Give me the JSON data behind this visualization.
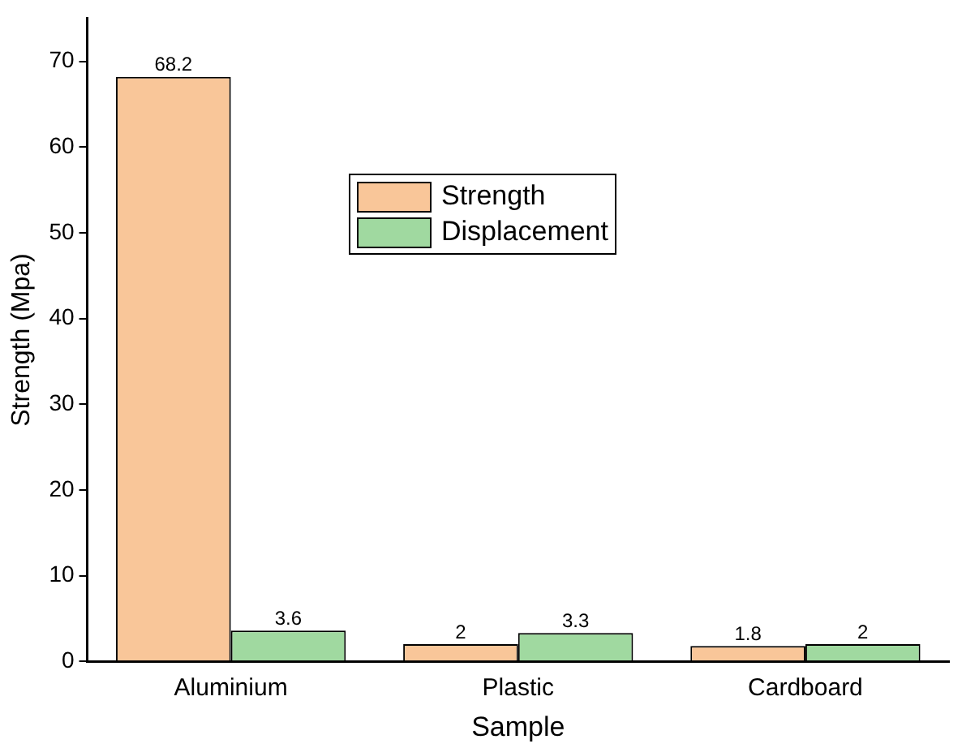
{
  "chart_data": {
    "type": "bar",
    "xlabel": "Sample",
    "ylabel": "Strength (Mpa)",
    "categories": [
      "Aluminium",
      "Plastic",
      "Cardboard"
    ],
    "series": [
      {
        "name": "Strength",
        "color": "#f9c699",
        "values": [
          68.2,
          2,
          1.8
        ]
      },
      {
        "name": "Displacement",
        "color": "#a0d9a0",
        "values": [
          3.6,
          3.3,
          2
        ]
      }
    ],
    "ylim": [
      0,
      75
    ],
    "yticks": [
      0,
      10,
      20,
      30,
      40,
      50,
      60,
      70
    ],
    "grid": false,
    "legend": "top",
    "data_labels": true
  }
}
